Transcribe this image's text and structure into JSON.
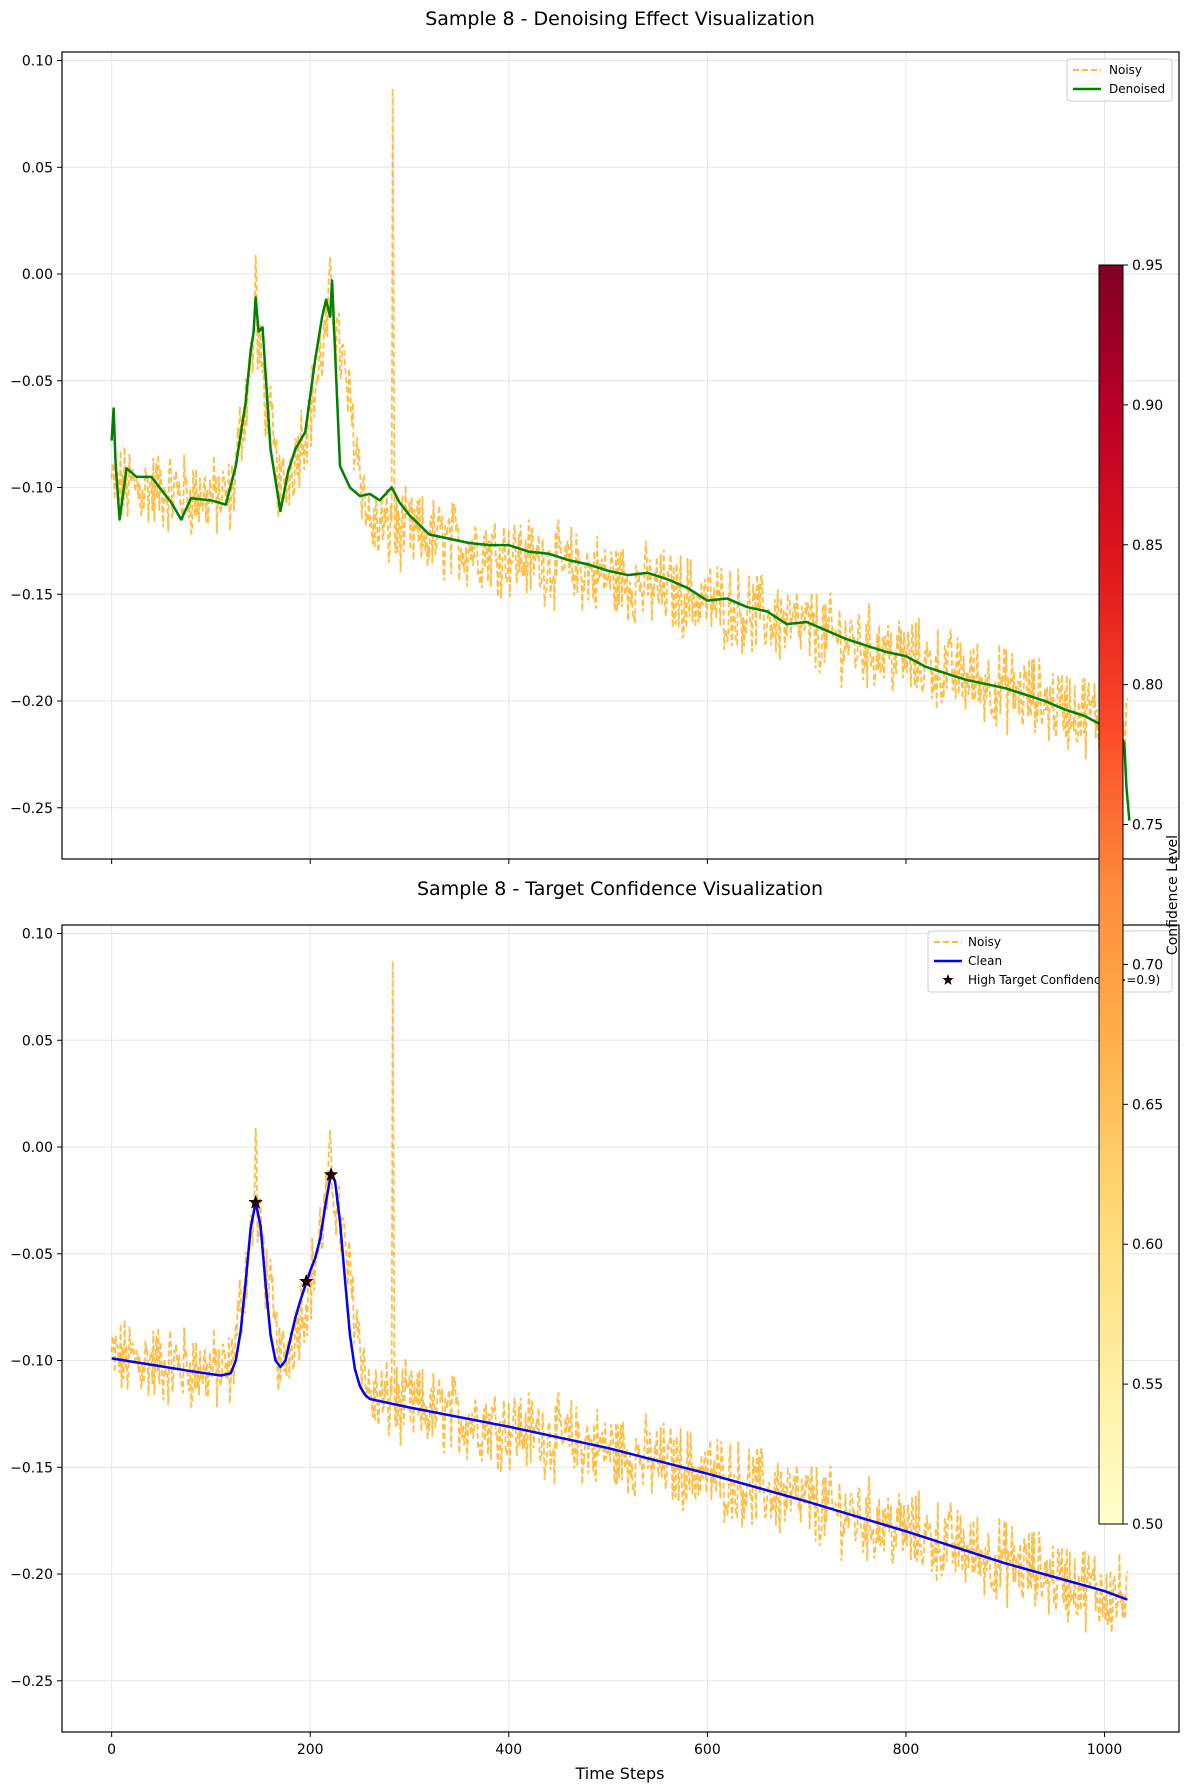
{
  "chart_data": [
    {
      "type": "line",
      "title": "Sample 8 - Denoising Effect Visualization",
      "xlabel": "",
      "ylabel": "",
      "xlim": [
        -50,
        1075
      ],
      "ylim": [
        -0.274,
        0.104
      ],
      "x_ticks": [
        0,
        200,
        400,
        600,
        800,
        1000
      ],
      "x_tick_labels_visible": false,
      "y_ticks": [
        -0.25,
        -0.2,
        -0.15,
        -0.1,
        -0.05,
        0.0,
        0.05,
        0.1
      ],
      "y_tick_labels": [
        "−0.25",
        "−0.20",
        "−0.15",
        "−0.10",
        "−0.05",
        "0.00",
        "0.05",
        "0.10"
      ],
      "grid": true,
      "legend_position": "top-right",
      "series": [
        {
          "name": "Noisy",
          "style": "dashed",
          "color": "#ffa500",
          "n_points": 1024,
          "trend_x": [
            0,
            60,
            120,
            145,
            170,
            200,
            222,
            260,
            400,
            600,
            800,
            1023
          ],
          "trend_y": [
            -0.099,
            -0.102,
            -0.106,
            -0.026,
            -0.103,
            -0.065,
            -0.013,
            -0.118,
            -0.131,
            -0.153,
            -0.18,
            -0.212
          ],
          "noise_amplitude": 0.017,
          "spikes": [
            {
              "x": 283,
              "y": 0.087
            },
            {
              "x": 145,
              "y": 0.009
            },
            {
              "x": 220,
              "y": 0.008
            }
          ]
        },
        {
          "name": "Denoised",
          "style": "solid",
          "color": "#008000",
          "x": [
            0,
            2,
            4,
            8,
            15,
            25,
            40,
            60,
            70,
            80,
            100,
            115,
            125,
            135,
            140,
            143,
            145,
            148,
            152,
            160,
            170,
            178,
            185,
            195,
            205,
            212,
            216,
            220,
            222,
            226,
            230,
            240,
            250,
            260,
            270,
            282,
            290,
            300,
            320,
            340,
            360,
            380,
            400,
            420,
            440,
            460,
            480,
            500,
            520,
            540,
            560,
            580,
            600,
            620,
            640,
            660,
            680,
            700,
            720,
            740,
            760,
            780,
            800,
            820,
            840,
            860,
            880,
            900,
            920,
            940,
            960,
            980,
            1000,
            1010,
            1015,
            1018,
            1020,
            1022,
            1025
          ],
          "y": [
            -0.078,
            -0.063,
            -0.089,
            -0.115,
            -0.091,
            -0.095,
            -0.095,
            -0.107,
            -0.115,
            -0.105,
            -0.106,
            -0.108,
            -0.09,
            -0.06,
            -0.036,
            -0.027,
            -0.011,
            -0.027,
            -0.025,
            -0.082,
            -0.111,
            -0.092,
            -0.082,
            -0.074,
            -0.04,
            -0.02,
            -0.012,
            -0.02,
            -0.003,
            -0.047,
            -0.09,
            -0.1,
            -0.104,
            -0.103,
            -0.106,
            -0.1,
            -0.107,
            -0.113,
            -0.122,
            -0.124,
            -0.126,
            -0.127,
            -0.127,
            -0.13,
            -0.131,
            -0.134,
            -0.136,
            -0.139,
            -0.141,
            -0.14,
            -0.143,
            -0.147,
            -0.153,
            -0.152,
            -0.156,
            -0.158,
            -0.164,
            -0.163,
            -0.167,
            -0.171,
            -0.174,
            -0.177,
            -0.179,
            -0.184,
            -0.187,
            -0.19,
            -0.192,
            -0.194,
            -0.197,
            -0.2,
            -0.204,
            -0.207,
            -0.212,
            -0.215,
            -0.204,
            -0.218,
            -0.22,
            -0.24,
            -0.256
          ]
        }
      ]
    },
    {
      "type": "line",
      "title": "Sample 8 - Target Confidence Visualization",
      "xlabel": "Time Steps",
      "ylabel": "",
      "xlim": [
        -50,
        1075
      ],
      "ylim": [
        -0.274,
        0.104
      ],
      "x_ticks": [
        0,
        200,
        400,
        600,
        800,
        1000
      ],
      "x_tick_labels": [
        "0",
        "200",
        "400",
        "600",
        "800",
        "1000"
      ],
      "y_ticks": [
        -0.25,
        -0.2,
        -0.15,
        -0.1,
        -0.05,
        0.0,
        0.05,
        0.1
      ],
      "y_tick_labels": [
        "−0.25",
        "−0.20",
        "−0.15",
        "−0.10",
        "−0.05",
        "0.00",
        "0.05",
        "0.10"
      ],
      "grid": true,
      "legend_position": "top-right",
      "series": [
        {
          "name": "Noisy",
          "style": "dashed",
          "color": "#ffa500",
          "same_as": "chart_0_noisy"
        },
        {
          "name": "Clean",
          "style": "solid",
          "color": "#0000ff",
          "x": [
            0,
            40,
            80,
            110,
            120,
            125,
            130,
            135,
            140,
            145,
            150,
            155,
            160,
            165,
            170,
            175,
            180,
            185,
            190,
            195,
            200,
            205,
            210,
            215,
            220,
            222,
            225,
            230,
            235,
            240,
            245,
            250,
            255,
            260,
            270,
            300,
            400,
            500,
            600,
            700,
            800,
            900,
            1000,
            1023
          ],
          "y": [
            -0.099,
            -0.102,
            -0.105,
            -0.107,
            -0.106,
            -0.1,
            -0.086,
            -0.063,
            -0.038,
            -0.026,
            -0.037,
            -0.064,
            -0.088,
            -0.1,
            -0.103,
            -0.1,
            -0.09,
            -0.08,
            -0.072,
            -0.065,
            -0.058,
            -0.052,
            -0.043,
            -0.028,
            -0.015,
            -0.013,
            -0.016,
            -0.035,
            -0.062,
            -0.088,
            -0.104,
            -0.112,
            -0.116,
            -0.118,
            -0.119,
            -0.122,
            -0.131,
            -0.141,
            -0.153,
            -0.166,
            -0.18,
            -0.195,
            -0.208,
            -0.212
          ]
        },
        {
          "name": "High Target Confidence (>=0.9)",
          "style": "markers",
          "marker": "star",
          "color": "#2a0000",
          "x": [
            145,
            196,
            221
          ],
          "y": [
            -0.026,
            -0.063,
            -0.013
          ]
        }
      ]
    }
  ],
  "colorbar": {
    "label": "Confidence Level",
    "min": 0.5,
    "max": 0.95,
    "colormap": "YlOrRd",
    "ticks": [
      0.5,
      0.55,
      0.6,
      0.65,
      0.7,
      0.75,
      0.8,
      0.85,
      0.9,
      0.95
    ],
    "tick_labels": [
      "0.50",
      "0.55",
      "0.60",
      "0.65",
      "0.70",
      "0.75",
      "0.80",
      "0.85",
      "0.90",
      "0.95"
    ],
    "stops": [
      "#ffffcc",
      "#ffeda0",
      "#fed976",
      "#feb24c",
      "#fd8d3c",
      "#fc4e2a",
      "#e31a1c",
      "#bd0026",
      "#800026"
    ]
  }
}
